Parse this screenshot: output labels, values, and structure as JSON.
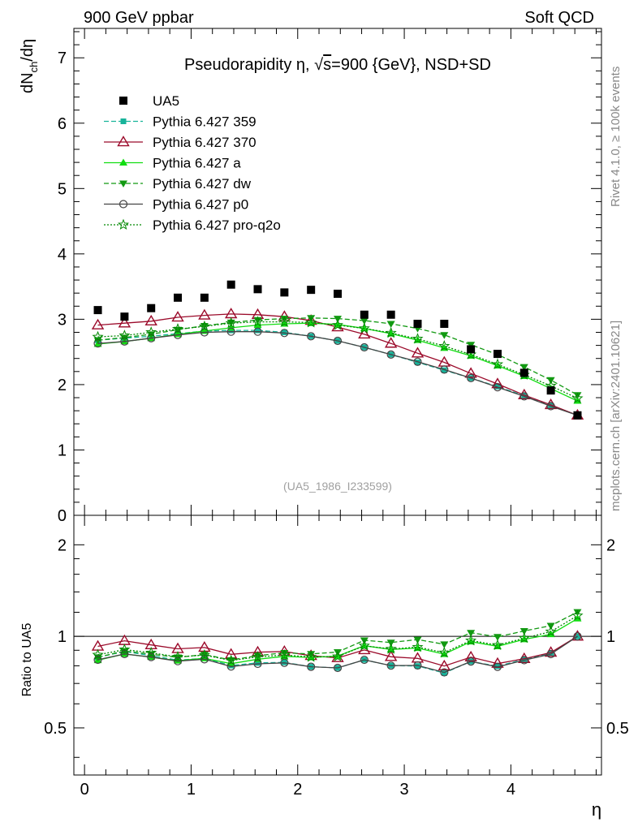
{
  "header": {
    "left": "900 GeV ppbar",
    "right": "Soft QCD"
  },
  "side_labels": {
    "rivet": "Rivet 4.1.0, ≥ 100k events",
    "mcplots": "mcplots.cern.ch [arXiv:2401.10621]"
  },
  "chart_data": {
    "type": "line",
    "title": "Pseudorapidity η, √s=900 {GeV}, NSD+SD",
    "title_parts": {
      "lead": "Pseudorapidity ",
      "eta": "η",
      "sep": ", ",
      "sqrt": "√",
      "s": "s",
      "rest": "=900 {GeV}, NSD+SD"
    },
    "xlabel": "η",
    "ylabel": "dNch/dη",
    "ylabel_parts": {
      "d1": "dN",
      "sub": "ch",
      "d2": "/dη"
    },
    "ratio_ylabel": "Ratio to UA5",
    "watermark": "(UA5_1986_I233599)",
    "xlim": [
      -0.1,
      4.85
    ],
    "ylim": [
      0,
      7.45
    ],
    "ratio_ylim": [
      0.35,
      2.5
    ],
    "x_ticks": [
      0,
      1,
      2,
      3,
      4
    ],
    "y_ticks": [
      0,
      1,
      2,
      3,
      4,
      5,
      6,
      7
    ],
    "ratio_ticks": [
      0.5,
      1,
      2
    ],
    "ratio_tick_labels": [
      "0.5",
      "1",
      "2"
    ],
    "x": [
      0.125,
      0.375,
      0.625,
      0.875,
      1.125,
      1.375,
      1.625,
      1.875,
      2.125,
      2.375,
      2.625,
      2.875,
      3.125,
      3.375,
      3.625,
      3.875,
      4.125,
      4.375,
      4.625
    ],
    "reference": {
      "name": "UA5",
      "values": [
        3.14,
        3.04,
        3.17,
        3.33,
        3.33,
        3.53,
        3.46,
        3.41,
        3.45,
        3.39,
        3.07,
        3.07,
        2.93,
        2.93,
        2.54,
        2.47,
        2.18,
        1.91,
        1.53
      ]
    },
    "series": [
      {
        "name": "Pythia 6.427 359",
        "color": "#17b39a",
        "dash": "6,3",
        "marker": "square",
        "values": [
          2.68,
          2.71,
          2.74,
          2.78,
          2.82,
          2.83,
          2.83,
          2.8,
          2.74,
          2.67,
          2.57,
          2.46,
          2.34,
          2.22,
          2.1,
          1.97,
          1.83,
          1.68,
          1.53
        ]
      },
      {
        "name": "Pythia 6.427 370",
        "color": "#9b0a2a",
        "dash": "",
        "marker": "triangle-open",
        "values": [
          2.91,
          2.94,
          2.97,
          3.03,
          3.06,
          3.08,
          3.07,
          3.04,
          2.98,
          2.88,
          2.77,
          2.63,
          2.48,
          2.34,
          2.17,
          2.01,
          1.84,
          1.69,
          1.53
        ]
      },
      {
        "name": "Pythia 6.427 a",
        "color": "#11dd11",
        "dash": "",
        "marker": "triangle",
        "values": [
          2.62,
          2.66,
          2.71,
          2.77,
          2.82,
          2.87,
          2.91,
          2.93,
          2.94,
          2.92,
          2.86,
          2.78,
          2.68,
          2.56,
          2.44,
          2.29,
          2.13,
          1.94,
          1.75
        ]
      },
      {
        "name": "Pythia 6.427 dw",
        "color": "#119911",
        "dash": "6,3",
        "marker": "triangle-down",
        "values": [
          2.68,
          2.72,
          2.77,
          2.84,
          2.9,
          2.95,
          2.99,
          3.01,
          3.02,
          3.01,
          2.98,
          2.93,
          2.86,
          2.76,
          2.61,
          2.46,
          2.27,
          2.07,
          1.84
        ]
      },
      {
        "name": "Pythia 6.427 p0",
        "color": "#444444",
        "dash": "",
        "marker": "circle-open",
        "values": [
          2.63,
          2.66,
          2.71,
          2.76,
          2.8,
          2.81,
          2.81,
          2.79,
          2.74,
          2.67,
          2.57,
          2.46,
          2.35,
          2.23,
          2.1,
          1.96,
          1.82,
          1.67,
          1.53
        ]
      },
      {
        "name": "Pythia 6.427 pro-q2o",
        "color": "#008800",
        "dash": "2,2",
        "marker": "star",
        "values": [
          2.73,
          2.75,
          2.8,
          2.85,
          2.89,
          2.94,
          2.96,
          2.96,
          2.95,
          2.91,
          2.86,
          2.79,
          2.7,
          2.59,
          2.46,
          2.31,
          2.15,
          1.98,
          1.79
        ]
      }
    ]
  }
}
